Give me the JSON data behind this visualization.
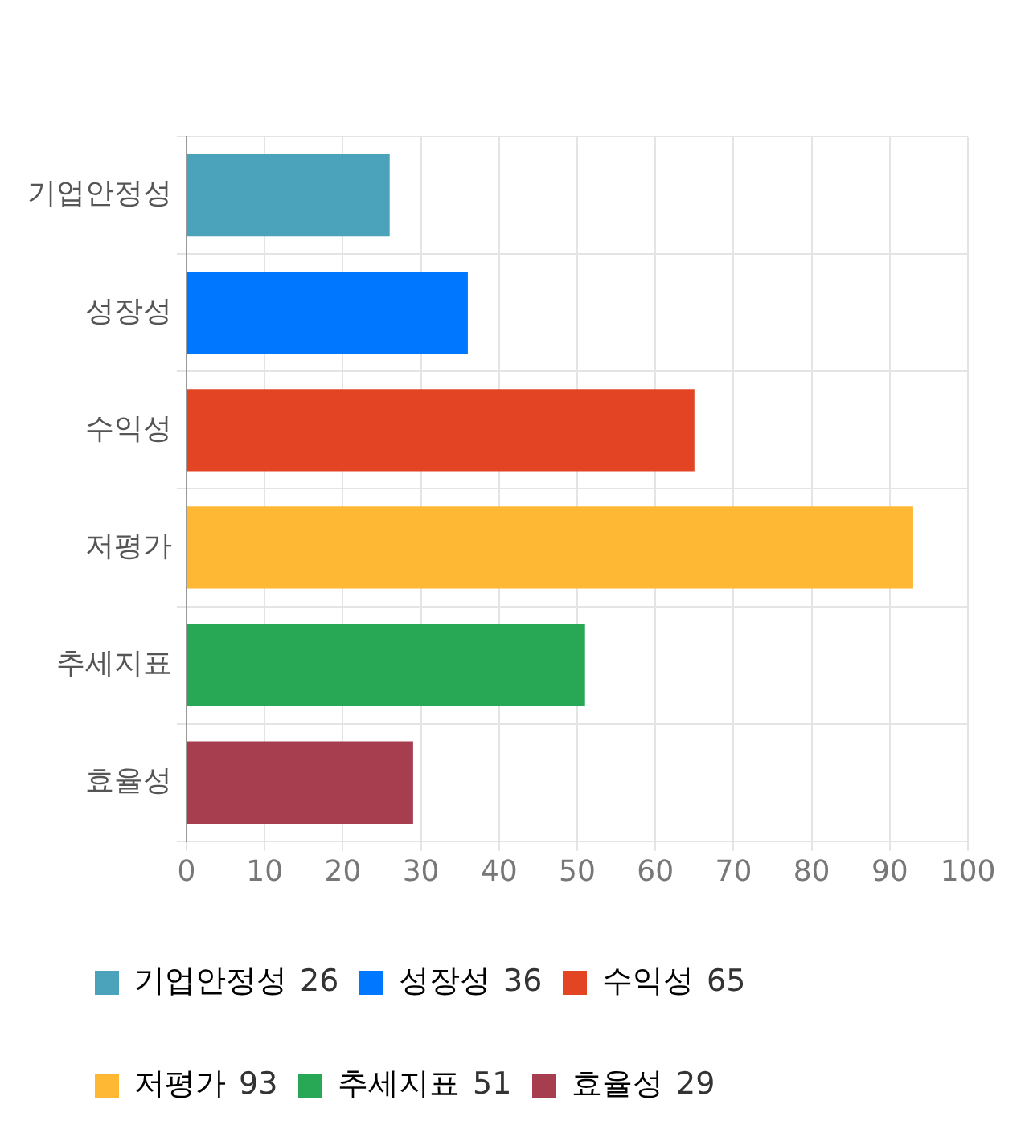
{
  "chart_data": {
    "type": "bar",
    "orientation": "horizontal",
    "stacked": true,
    "categories": [
      "기업안정성",
      "성장성",
      "수익성",
      "저평가",
      "추세지표",
      "효율성"
    ],
    "series": [
      {
        "name": "기업안정성",
        "color": "#4aa3bb",
        "values": [
          26,
          null,
          null,
          null,
          null,
          null
        ]
      },
      {
        "name": "성장성",
        "color": "#0077ff",
        "values": [
          null,
          36,
          null,
          null,
          null,
          null
        ]
      },
      {
        "name": "수익성",
        "color": "#e34424",
        "values": [
          null,
          null,
          65,
          null,
          null,
          null
        ]
      },
      {
        "name": "저평가",
        "color": "#ffb833",
        "values": [
          null,
          null,
          null,
          93,
          null,
          null
        ]
      },
      {
        "name": "추세지표",
        "color": "#28a855",
        "values": [
          null,
          null,
          null,
          null,
          51,
          null
        ]
      },
      {
        "name": "효율성",
        "color": "#a63e4f",
        "values": [
          null,
          null,
          null,
          null,
          null,
          29
        ]
      }
    ],
    "annotations": [
      "26",
      "36",
      "65",
      "93",
      "51",
      "29"
    ],
    "xlim": [
      0,
      100
    ],
    "xticks": [
      0,
      10,
      20,
      30,
      40,
      50,
      60,
      70,
      80,
      90,
      100
    ],
    "grid": true,
    "legend": "bottom"
  }
}
